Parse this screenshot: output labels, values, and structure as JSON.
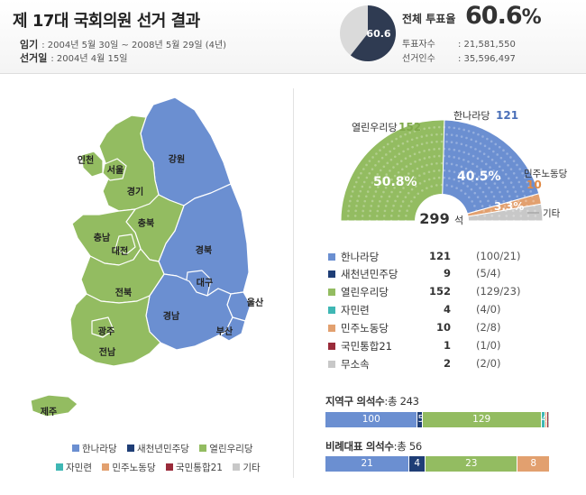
{
  "header": {
    "title": "제 17대 국회의원 선거 결과",
    "term_label": "임기",
    "term_value": ": 2004년 5월 30일 ~ 2008년 5월 29일 (4년)",
    "date_label": "선거일",
    "date_value": ": 2004년 4월 15일"
  },
  "turnout": {
    "label": "전체 투표율",
    "value": "60.6",
    "unit": "%",
    "pie_label": "60.6",
    "fraction": 0.606,
    "voters_label": "투표자수",
    "voters_value": ": 21,581,550",
    "electorate_label": "선거인수",
    "electorate_value": ": 35,596,497"
  },
  "colors": {
    "hannara": "#6b8fd1",
    "saecheonnyeon": "#1f3e76",
    "yeollin": "#93bc61",
    "jaminryeon": "#3fb7b4",
    "minju_nodong": "#e2a06f",
    "gukmin_tonghap": "#9a2b3a",
    "independent": "#c8c8c8"
  },
  "map": {
    "regions": {
      "incheon": "인천",
      "seoul": "서울",
      "gyeonggi": "경기",
      "gangwon": "강원",
      "chungbuk": "충북",
      "chungnam": "충남",
      "daejeon": "대전",
      "gyeongbuk": "경북",
      "daegu": "대구",
      "jeonbuk": "전북",
      "gyeongnam": "경남",
      "ulsan": "울산",
      "gwangju": "광주",
      "jeonnam": "전남",
      "busan": "부산",
      "jeju": "제주"
    },
    "legend": [
      "한나라당",
      "새천년민주당",
      "열린우리당",
      "자민련",
      "민주노동당",
      "국민통합21",
      "기타"
    ]
  },
  "chart_data": [
    {
      "type": "pie",
      "title": "",
      "total_label": "299",
      "total_unit": "석",
      "slices": [
        {
          "name": "열린우리당",
          "value": 152,
          "label": "152",
          "percent_label": "50.8%"
        },
        {
          "name": "한나라당",
          "value": 121,
          "label": "121",
          "percent_label": "40.5%"
        },
        {
          "name": "민주노동당",
          "value": 10,
          "label": "10",
          "percent_label": "3.3%"
        },
        {
          "name": "기타",
          "value": 16,
          "label": ""
        }
      ]
    },
    {
      "type": "table",
      "rows": [
        {
          "party": "한나라당",
          "seats": 121,
          "breakdown": "(100/21)"
        },
        {
          "party": "새천년민주당",
          "seats": 9,
          "breakdown": "(5/4)"
        },
        {
          "party": "열린우리당",
          "seats": 152,
          "breakdown": "(129/23)"
        },
        {
          "party": "자민련",
          "seats": 4,
          "breakdown": "(4/0)"
        },
        {
          "party": "민주노동당",
          "seats": 10,
          "breakdown": "(2/8)"
        },
        {
          "party": "국민통합21",
          "seats": 1,
          "breakdown": "(1/0)"
        },
        {
          "party": "무소속",
          "seats": 2,
          "breakdown": "(2/0)"
        }
      ]
    },
    {
      "type": "bar",
      "title": "지역구 의석수",
      "subtitle": ":총 243",
      "stacked": true,
      "series": [
        {
          "name": "한나라당",
          "value": 100
        },
        {
          "name": "새천년민주당",
          "value": 5
        },
        {
          "name": "열린우리당",
          "value": 129
        },
        {
          "name": "자민련",
          "value": 4
        },
        {
          "name": "민주노동당",
          "value": 2
        },
        {
          "name": "국민통합21",
          "value": 1
        },
        {
          "name": "무소속",
          "value": 2
        }
      ]
    },
    {
      "type": "bar",
      "title": "비례대표 의석수",
      "subtitle": ":총 56",
      "stacked": true,
      "series": [
        {
          "name": "한나라당",
          "value": 21
        },
        {
          "name": "새천년민주당",
          "value": 4
        },
        {
          "name": "열린우리당",
          "value": 23
        },
        {
          "name": "민주노동당",
          "value": 8
        }
      ]
    }
  ]
}
